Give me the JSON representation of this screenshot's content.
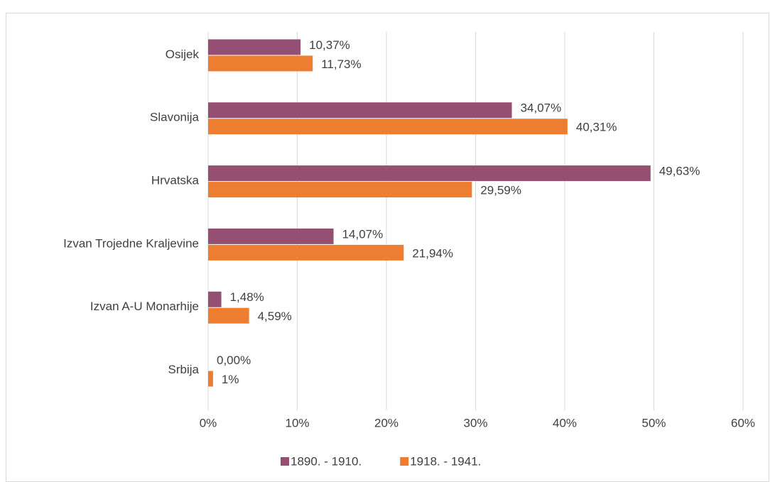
{
  "chart_data": {
    "type": "hbar",
    "categories": [
      "Osijek",
      "Slavonija",
      "Hrvatska",
      "Izvan Trojedne Kraljevine",
      "Izvan A-U Monarhije",
      "Srbija"
    ],
    "series": [
      {
        "name": "1890. - 1910.",
        "color": "#954f72",
        "values": [
          10.37,
          34.07,
          49.63,
          14.07,
          1.48,
          0
        ],
        "value_labels": [
          "10,37%",
          "34,07%",
          "49,63%",
          "14,07%",
          "1,48%",
          "0,00%"
        ]
      },
      {
        "name": "1918. - 1941.",
        "color": "#ed7d31",
        "values": [
          11.73,
          40.31,
          29.59,
          21.94,
          4.59,
          0.55
        ],
        "value_labels": [
          "11,73%",
          "40,31%",
          "29,59%",
          "21,94%",
          "4,59%",
          "1%"
        ]
      }
    ],
    "xlim": [
      0,
      60
    ],
    "xticks": [
      {
        "value": 0,
        "label": "0%"
      },
      {
        "value": 10,
        "label": "10%"
      },
      {
        "value": 20,
        "label": "20%"
      },
      {
        "value": 30,
        "label": "30%"
      },
      {
        "value": 40,
        "label": "40%"
      },
      {
        "value": 50,
        "label": "50%"
      },
      {
        "value": 60,
        "label": "60%"
      }
    ],
    "grid": true,
    "legend": "bottom"
  }
}
